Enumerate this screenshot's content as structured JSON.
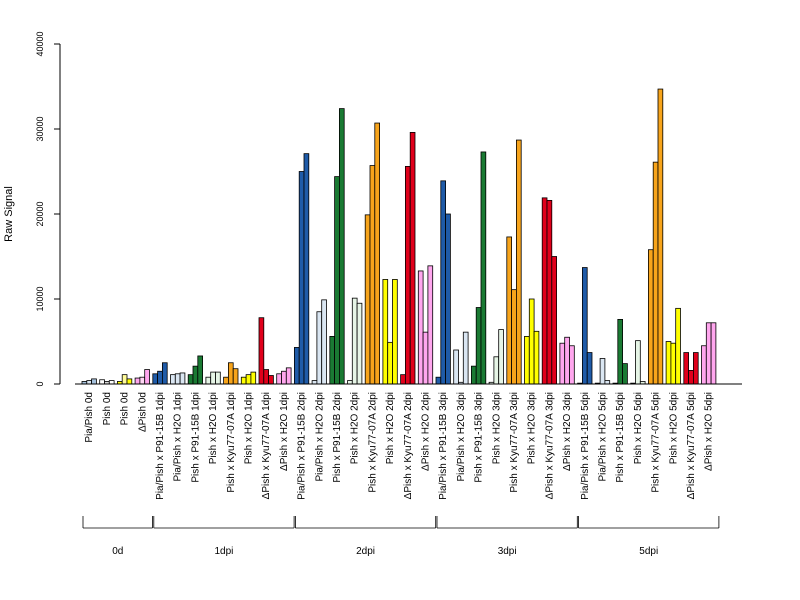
{
  "chart_data": {
    "type": "bar",
    "title": "",
    "xlabel": "",
    "ylabel": "Raw Signal",
    "ylim": [
      0,
      40000
    ],
    "y_ticks": [
      0,
      10000,
      20000,
      30000,
      40000
    ],
    "grid": false,
    "legend": "none",
    "colors": {
      "Pia/Pish": "#a5c1dc",
      "Pish": "#ffffff",
      "dPish": "#ffa6ee",
      "dark_blue": "#1f5ba8",
      "light_blue": "#dae6f2",
      "dark_green": "#1a7a33",
      "light_green": "#e6f5e6",
      "orange": "#f7a41b",
      "yellow": "#ffff00",
      "red": "#e0001b",
      "pink": "#ffa6ee",
      "pale_yellow": "#fffb9a",
      "neutral": "#d6d6d6"
    },
    "categories": [
      "Pia/Pish 0d",
      "Pish 0d",
      "Pish 0d",
      "ΔPish 0d",
      "Pia/Pish x P91-15B 1dpi",
      "Pia/Pish x H2O 1dpi",
      "Pish x P91-15B 1dpi",
      "Pish x H2O 1dpi",
      "Pish x Kyu77-07A 1dpi",
      "Pish x H2O 1dpi",
      "ΔPish x Kyu77-07A 1dpi",
      "ΔPish x H2O 1dpi",
      "Pia/Pish x P91-15B 2dpi",
      "Pia/Pish x H2O 2dpi",
      "Pish x P91-15B 2dpi",
      "Pish x H2O 2dpi",
      "Pish x Kyu77-07A 2dpi",
      "Pish x H2O 2dpi",
      "ΔPish x Kyu77-07A 2dpi",
      "ΔPish x H2O 2dpi",
      "Pia/Pish x P91-15B 3dpi",
      "Pia/Pish x H2O 3dpi",
      "Pish x P91-15B 3dpi",
      "Pish x H2O 3dpi",
      "Pish x Kyu77-07A 3dpi",
      "Pish x H2O 3dpi",
      "ΔPish x Kyu77-07A 3dpi",
      "ΔPish x H2O 3dpi",
      "Pia/Pish x P91-15B 5dpi",
      "Pia/Pish x H2O 5dpi",
      "Pish x P91-15B 5dpi",
      "Pish x H2O 5dpi",
      "Pish x Kyu77-07A 5dpi",
      "Pish x H2O 5dpi",
      "ΔPish x Kyu77-07A 5dpi",
      "ΔPish x H2O 5dpi"
    ],
    "bar_colors": [
      [
        "#a5c1dc",
        "#dae6f2",
        "#a5c1dc"
      ],
      [
        "#ffffff",
        "#d6d6d6",
        "#ffffff"
      ],
      [
        "#ffff00",
        "#fffb9a",
        "#ffff00"
      ],
      [
        "#ffa6ee",
        "#ffd6f5",
        "#ffa6ee"
      ],
      [
        "#1f5ba8",
        "#1f5ba8",
        "#1f5ba8"
      ],
      [
        "#dae6f2",
        "#dae6f2",
        "#dae6f2"
      ],
      [
        "#1a7a33",
        "#1a7a33",
        "#1a7a33"
      ],
      [
        "#e6f5e6",
        "#e6f5e6",
        "#e6f5e6"
      ],
      [
        "#f7a41b",
        "#f7a41b",
        "#f7a41b"
      ],
      [
        "#ffff00",
        "#ffff00",
        "#ffff00"
      ],
      [
        "#e0001b",
        "#e0001b",
        "#e0001b"
      ],
      [
        "#ffa6ee",
        "#ffa6ee",
        "#ffa6ee"
      ],
      [
        "#1f5ba8",
        "#1f5ba8",
        "#1f5ba8"
      ],
      [
        "#dae6f2",
        "#dae6f2",
        "#dae6f2"
      ],
      [
        "#1a7a33",
        "#1a7a33",
        "#1a7a33"
      ],
      [
        "#e6f5e6",
        "#e6f5e6",
        "#e6f5e6"
      ],
      [
        "#f7a41b",
        "#f7a41b",
        "#f7a41b"
      ],
      [
        "#ffff00",
        "#ffff00",
        "#ffff00"
      ],
      [
        "#e0001b",
        "#e0001b",
        "#e0001b"
      ],
      [
        "#ffa6ee",
        "#ffa6ee",
        "#ffa6ee"
      ],
      [
        "#1f5ba8",
        "#1f5ba8",
        "#1f5ba8"
      ],
      [
        "#dae6f2",
        "#dae6f2",
        "#dae6f2"
      ],
      [
        "#1a7a33",
        "#1a7a33",
        "#1a7a33"
      ],
      [
        "#e6f5e6",
        "#e6f5e6",
        "#e6f5e6"
      ],
      [
        "#f7a41b",
        "#f7a41b",
        "#f7a41b"
      ],
      [
        "#ffff00",
        "#ffff00",
        "#ffff00"
      ],
      [
        "#e0001b",
        "#e0001b",
        "#e0001b"
      ],
      [
        "#ffa6ee",
        "#ffa6ee",
        "#ffa6ee"
      ],
      [
        "#1f5ba8",
        "#1f5ba8",
        "#1f5ba8"
      ],
      [
        "#dae6f2",
        "#dae6f2",
        "#dae6f2"
      ],
      [
        "#1a7a33",
        "#1a7a33",
        "#1a7a33"
      ],
      [
        "#e6f5e6",
        "#e6f5e6",
        "#e6f5e6"
      ],
      [
        "#f7a41b",
        "#f7a41b",
        "#f7a41b"
      ],
      [
        "#ffff00",
        "#ffff00",
        "#ffff00"
      ],
      [
        "#e0001b",
        "#e0001b",
        "#e0001b"
      ],
      [
        "#ffa6ee",
        "#ffa6ee",
        "#ffa6ee"
      ]
    ],
    "series": [
      {
        "values": [
          300,
          500,
          300,
          700,
          1200,
          1100,
          1100,
          800,
          800,
          800,
          7800,
          1200,
          4300,
          400,
          5600,
          400,
          19900,
          12300,
          1100,
          13300,
          800,
          4000,
          2100,
          200,
          17300,
          5600,
          21900,
          4800,
          100,
          100,
          100,
          100,
          15800,
          5000,
          3700,
          4500
        ]
      },
      {
        "values": [
          400,
          300,
          1100,
          800,
          1500,
          1200,
          2100,
          1400,
          2500,
          1100,
          1700,
          1500,
          25000,
          8500,
          24400,
          10100,
          25700,
          4900,
          25600,
          6100,
          23900,
          200,
          9000,
          3200,
          11100,
          10000,
          21600,
          5500,
          13700,
          3000,
          7600,
          5100,
          26100,
          4800,
          1600,
          7200
        ]
      },
      {
        "values": [
          600,
          400,
          600,
          1700,
          2500,
          1300,
          3300,
          1400,
          1800,
          1400,
          1000,
          1900,
          27100,
          9900,
          32400,
          9500,
          30700,
          12300,
          29600,
          13900,
          20000,
          6100,
          27300,
          6400,
          28700,
          6200,
          15000,
          4500,
          3700,
          400,
          2400,
          300,
          34700,
          8900,
          3700,
          7200
        ]
      }
    ],
    "groups": [
      {
        "label": "0d",
        "count": 4
      },
      {
        "label": "1dpi",
        "count": 8
      },
      {
        "label": "2dpi",
        "count": 8
      },
      {
        "label": "3dpi",
        "count": 8
      },
      {
        "label": "5dpi",
        "count": 8
      }
    ]
  }
}
